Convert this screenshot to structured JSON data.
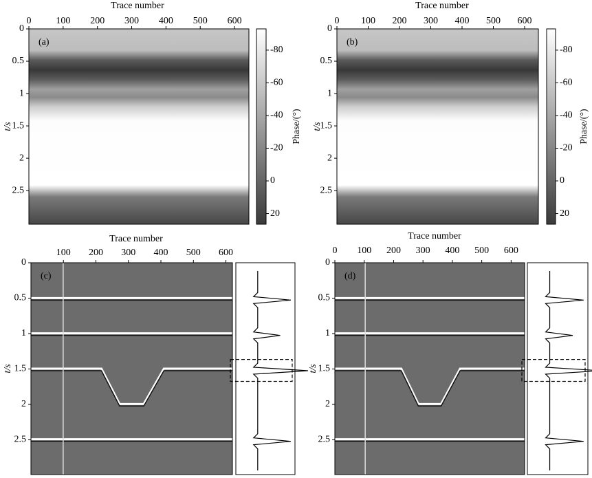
{
  "panels": [
    {
      "label": "(a)",
      "x_label": "Trace number",
      "y_label": "t/s",
      "xlim": [
        0,
        642
      ],
      "ylim": [
        0,
        3.02
      ],
      "xticks": [
        0,
        100,
        200,
        300,
        400,
        500,
        600
      ],
      "yticks": [
        0,
        0.5,
        1,
        1.5,
        2,
        2.5
      ],
      "colorbar": {
        "label": "Phase/(°)",
        "lim": [
          -93,
          26.5
        ],
        "ticks": [
          -80,
          -60,
          -40,
          -20,
          0,
          20
        ]
      }
    },
    {
      "label": "(b)",
      "x_label": "Trace number",
      "y_label": "t/s",
      "xlim": [
        0,
        644
      ],
      "ylim": [
        0,
        3.02
      ],
      "xticks": [
        0,
        100,
        200,
        300,
        400,
        500,
        600
      ],
      "yticks": [
        0,
        0.5,
        1,
        1.5,
        2,
        2.5
      ],
      "colorbar": {
        "label": "Phase/(°)",
        "lim": [
          -93,
          26.5
        ],
        "ticks": [
          -80,
          -60,
          -40,
          -20,
          0,
          20
        ]
      }
    },
    {
      "label": "(c)",
      "x_label": "Trace number",
      "y_label": "t/s",
      "xlim": [
        0,
        620
      ],
      "ylim": [
        0,
        2.99
      ],
      "xticks": [
        100,
        200,
        300,
        400,
        500,
        600
      ],
      "yticks": [
        0,
        0.5,
        1,
        1.5,
        2,
        2.5
      ]
    },
    {
      "label": "(d)",
      "x_label": "Trace number",
      "y_label": "t/s",
      "xlim": [
        0,
        646
      ],
      "ylim": [
        0,
        2.99
      ],
      "xticks": [
        0,
        100,
        200,
        300,
        400,
        500,
        600
      ],
      "yticks": [
        0,
        0.5,
        1,
        1.5,
        2,
        2.5
      ]
    }
  ]
}
